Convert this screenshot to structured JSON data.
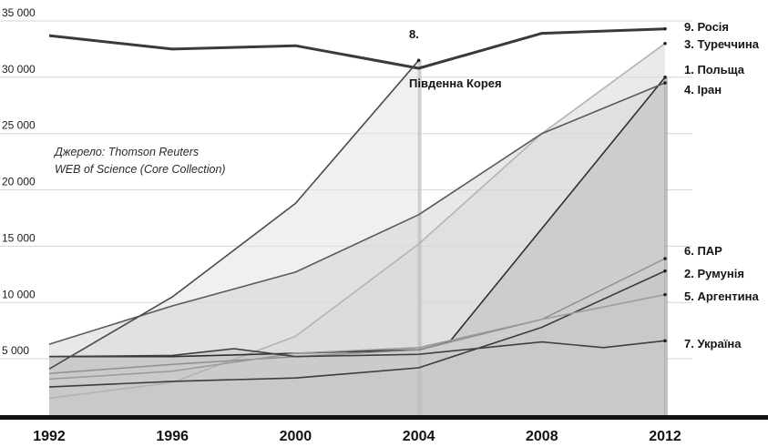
{
  "chart_data": {
    "type": "line",
    "title": "",
    "xlabel": "",
    "ylabel": "",
    "xlim": [
      1992,
      2012
    ],
    "ylim": [
      0,
      35000
    ],
    "x_ticks": [
      "1992",
      "1996",
      "2000",
      "2004",
      "2008",
      "2012"
    ],
    "y_ticks": [
      "5 000",
      "10 000",
      "15 000",
      "20 000",
      "25 000",
      "30 000",
      "35 000"
    ],
    "grid": true,
    "source_note": [
      "Джерело: Thomson Reuters",
      "WEB of Science (Core Collection)"
    ],
    "series": [
      {
        "name": "9. Росія",
        "x": [
          1992,
          1996,
          2000,
          2004,
          2008,
          2012
        ],
        "values": [
          33700,
          32500,
          32800,
          30800,
          33900,
          34300
        ]
      },
      {
        "name": "3. Туреччина",
        "x": [
          1992,
          1996,
          2000,
          2004,
          2008,
          2012
        ],
        "values": [
          1500,
          2900,
          7000,
          15200,
          25000,
          33000
        ]
      },
      {
        "name": "1. Польща",
        "x": [
          1992,
          1996,
          2000,
          2004,
          2005,
          2012
        ],
        "values": [
          5200,
          5200,
          5500,
          5800,
          6500,
          30000
        ]
      },
      {
        "name": "4. Іран",
        "x": [
          1992,
          1996,
          2000,
          2004,
          2008,
          2012
        ],
        "values": [
          6300,
          9700,
          12700,
          17800,
          25000,
          29500
        ]
      },
      {
        "name": "6. ПАР",
        "x": [
          1992,
          1996,
          2000,
          2004,
          2008,
          2012
        ],
        "values": [
          3700,
          4500,
          5200,
          5800,
          8500,
          13900
        ]
      },
      {
        "name": "2. Румунія",
        "x": [
          1992,
          1996,
          2000,
          2004,
          2008,
          2012
        ],
        "values": [
          2500,
          3000,
          3300,
          4200,
          7800,
          12800
        ]
      },
      {
        "name": "5. Аргентина",
        "x": [
          1992,
          1996,
          2000,
          2004,
          2008,
          2012
        ],
        "values": [
          3200,
          3900,
          5500,
          6000,
          8500,
          10700
        ]
      },
      {
        "name": "7. Україна",
        "x": [
          1992,
          1996,
          1998,
          2000,
          2004,
          2008,
          2010,
          2012
        ],
        "values": [
          5200,
          5300,
          5900,
          5200,
          5400,
          6500,
          6000,
          6600
        ]
      },
      {
        "name": "8. Південна Корея",
        "x": [
          1992,
          1996,
          2000,
          2004
        ],
        "values": [
          4100,
          10500,
          18800,
          31500
        ]
      }
    ]
  }
}
